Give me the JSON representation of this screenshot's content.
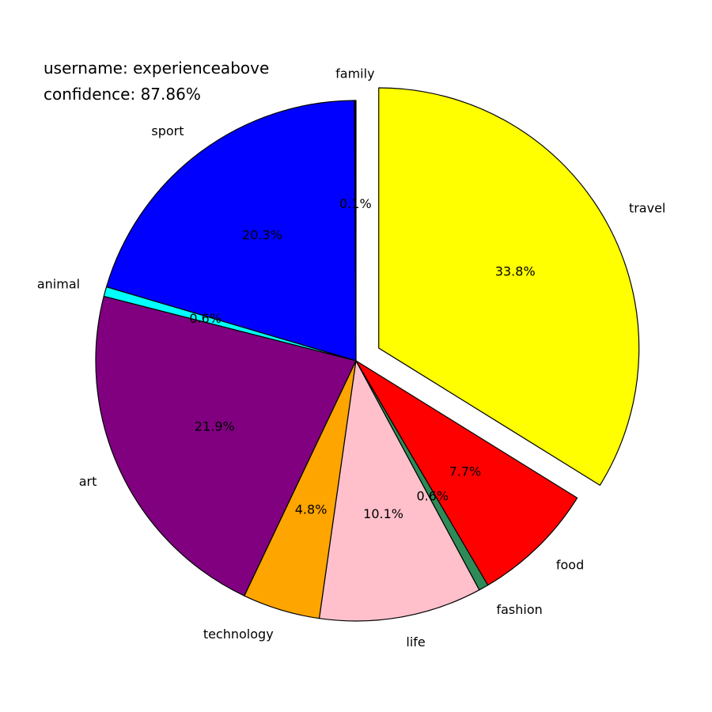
{
  "annotations": {
    "username": "username: experienceabove",
    "confidence": "confidence: 87.86%"
  },
  "chart_data": {
    "type": "pie",
    "start_angle_deg": 90,
    "direction": "counterclockwise",
    "slices": [
      {
        "label": "family",
        "value": 0.1,
        "pct_label": "0.1%",
        "color": "#000000",
        "explode": false
      },
      {
        "label": "sport",
        "value": 20.3,
        "pct_label": "20.3%",
        "color": "#0000ff",
        "explode": false
      },
      {
        "label": "animal",
        "value": 0.6,
        "pct_label": "0.6%",
        "color": "#00ffff",
        "explode": false
      },
      {
        "label": "art",
        "value": 21.9,
        "pct_label": "21.9%",
        "color": "#800080",
        "explode": false
      },
      {
        "label": "technology",
        "value": 4.8,
        "pct_label": "4.8%",
        "color": "#ffa500",
        "explode": false
      },
      {
        "label": "life",
        "value": 10.1,
        "pct_label": "10.1%",
        "color": "#ffc0cb",
        "explode": false
      },
      {
        "label": "fashion",
        "value": 0.6,
        "pct_label": "0.6%",
        "color": "#2e8b57",
        "explode": false
      },
      {
        "label": "food",
        "value": 7.7,
        "pct_label": "7.7%",
        "color": "#ff0000",
        "explode": false
      },
      {
        "label": "travel",
        "value": 33.8,
        "pct_label": "33.8%",
        "color": "#ffff00",
        "explode": true
      }
    ]
  }
}
